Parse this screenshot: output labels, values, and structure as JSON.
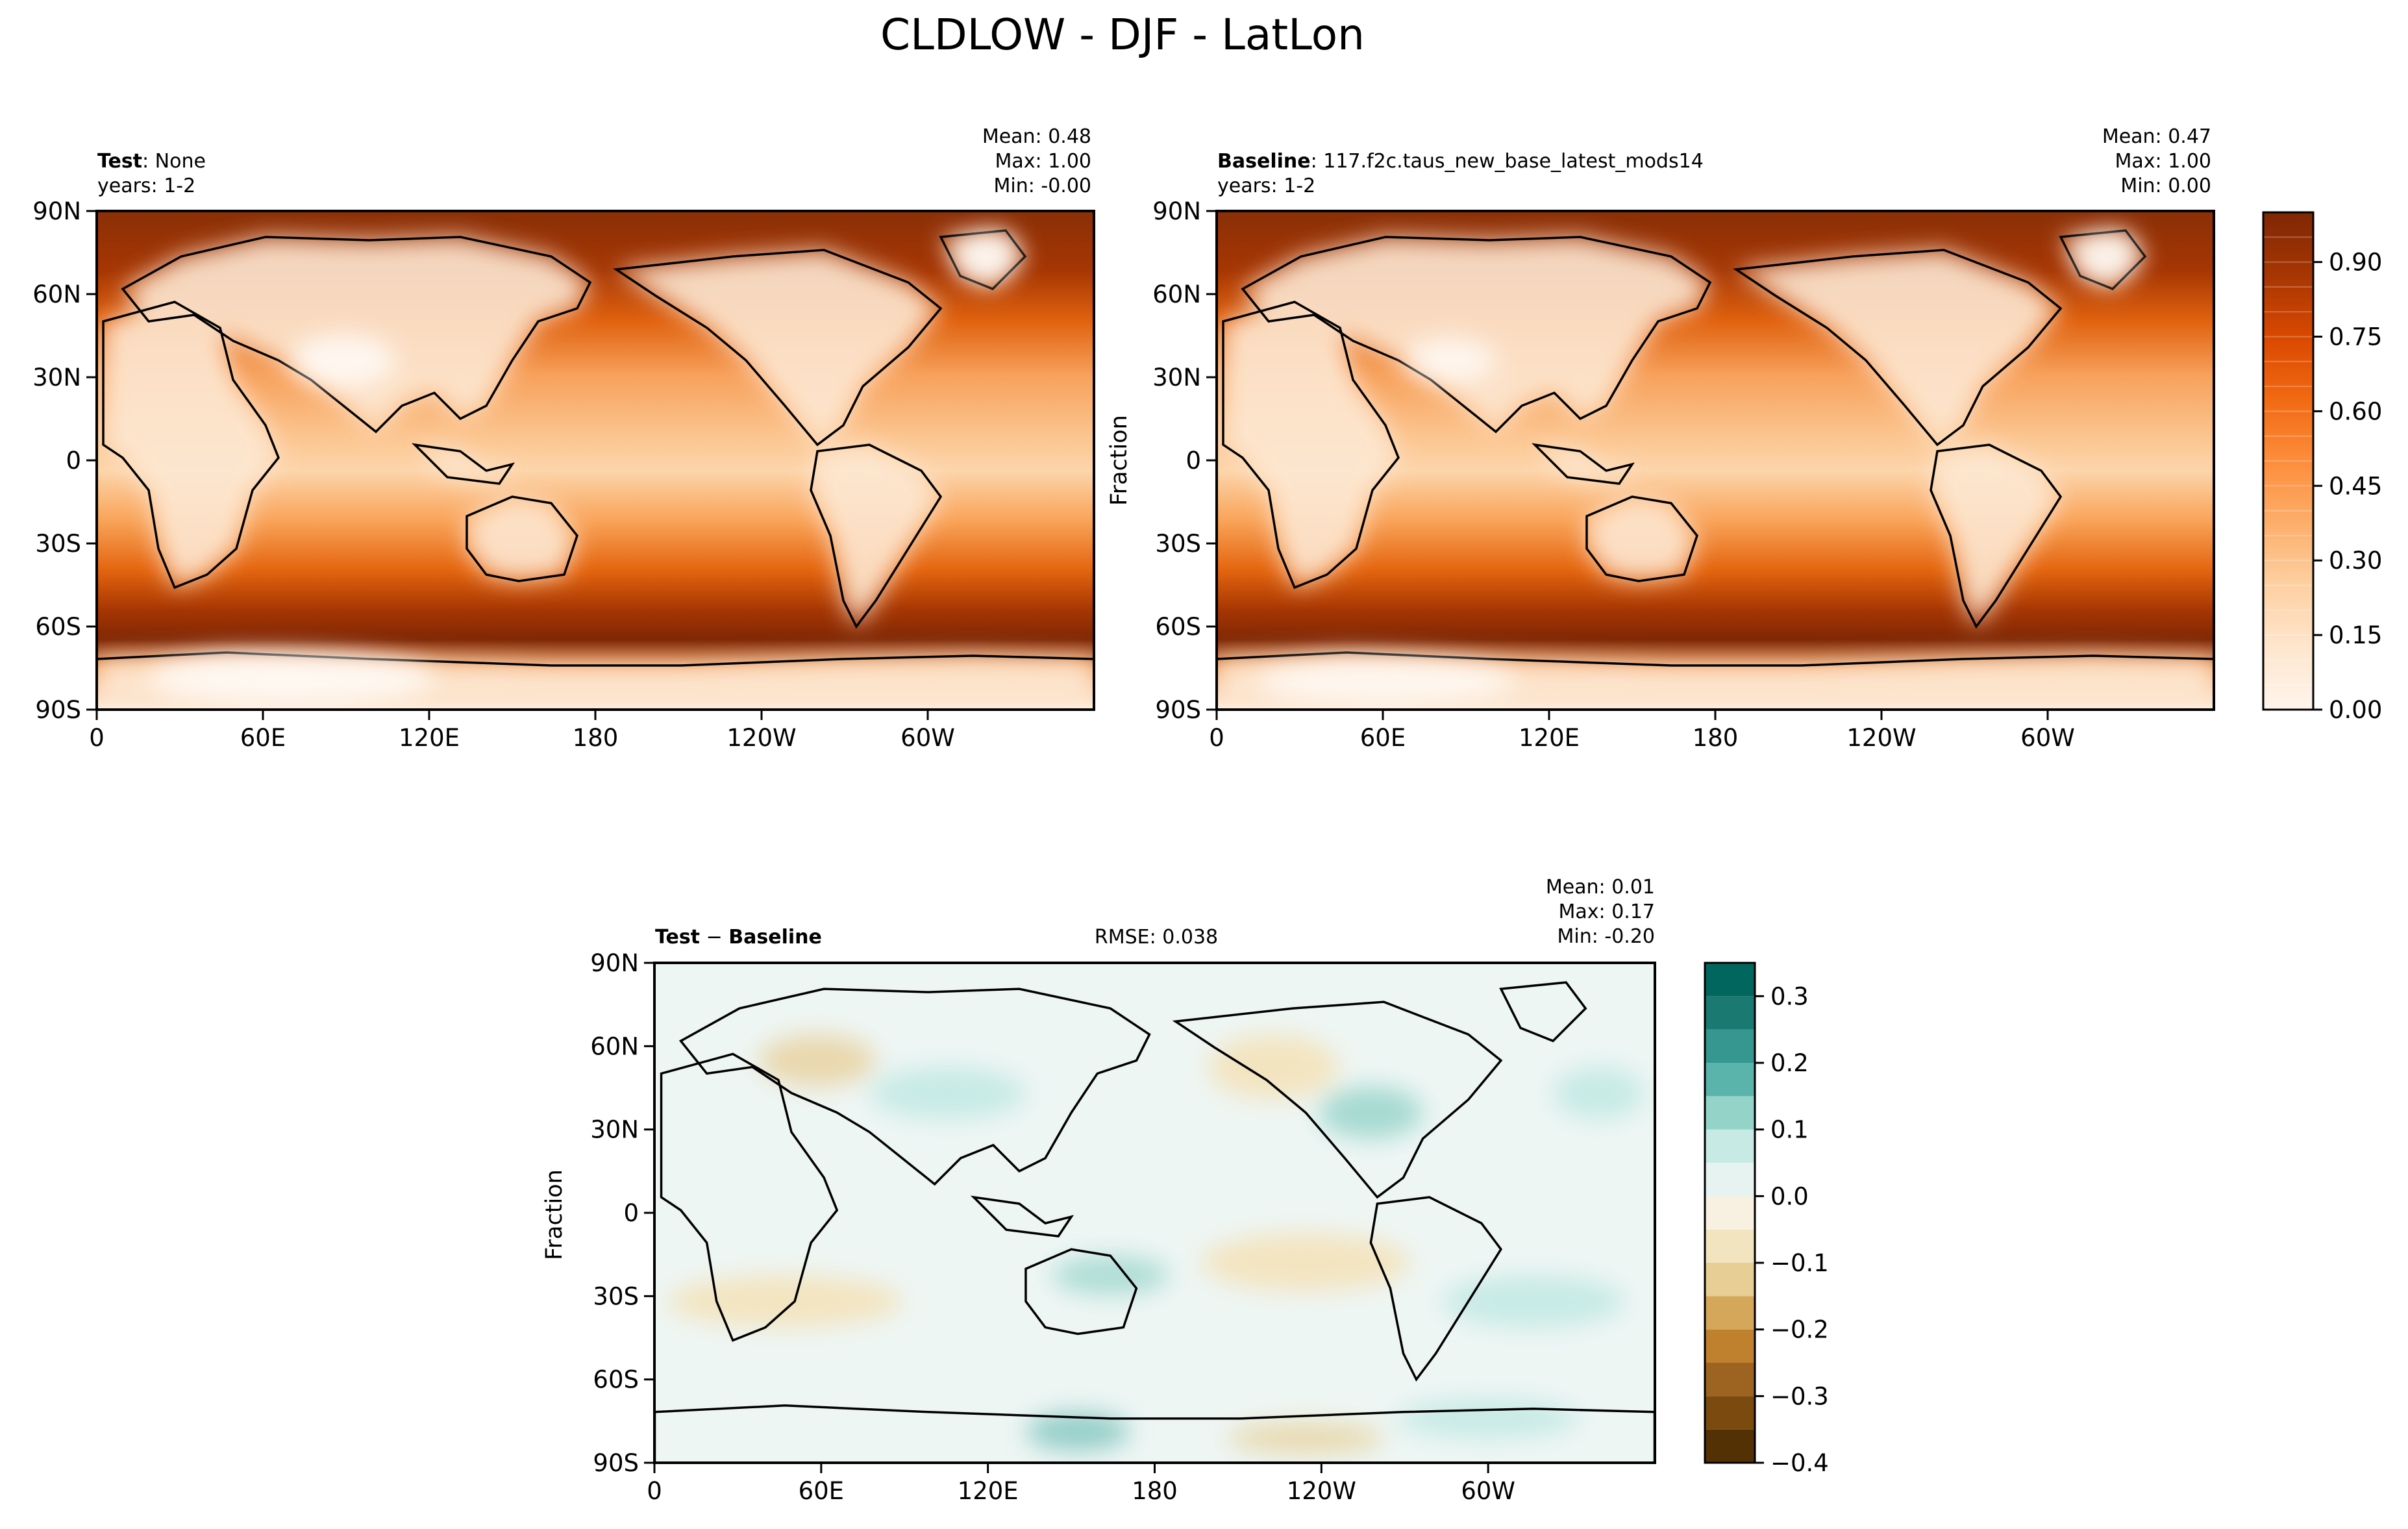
{
  "figure": {
    "title": "CLDLOW - DJF - LatLon"
  },
  "chart_data": [
    {
      "type": "heatmap",
      "panel": "test",
      "label_bold": "Test",
      "label_rest": ": None",
      "subtitle": "years: 1-2",
      "stats": [
        "Mean:  0.48",
        "Max:  1.00",
        "Min: -0.00"
      ],
      "projection": "PlateCarree, central longitude 180",
      "xticks": [
        "0",
        "60E",
        "120E",
        "180",
        "120W",
        "60W"
      ],
      "yticks": [
        "90N",
        "60N",
        "30N",
        "0",
        "30S",
        "60S",
        "90S"
      ],
      "xlim": [
        0,
        360
      ],
      "ylim": [
        -90,
        90
      ],
      "ylabel": "",
      "colormap": "Oranges",
      "colors": [
        "#fff5eb",
        "#fee6ce",
        "#fdd0a2",
        "#fdae6b",
        "#fd8d3c",
        "#f16913",
        "#d94801",
        "#a63603",
        "#7f2704"
      ]
    },
    {
      "type": "heatmap",
      "panel": "baseline",
      "label_bold": "Baseline",
      "label_rest": ": 117.f2c.taus_new_base_latest_mods14",
      "subtitle": "years: 1-2",
      "stats": [
        "Mean:  0.47",
        "Max:  1.00",
        "Min:  0.00"
      ],
      "projection": "PlateCarree, central longitude 180",
      "xticks": [
        "0",
        "60E",
        "120E",
        "180",
        "120W",
        "60W"
      ],
      "yticks": [
        "90N",
        "60N",
        "30N",
        "0",
        "30S",
        "60S",
        "90S"
      ],
      "xlim": [
        0,
        360
      ],
      "ylim": [
        -90,
        90
      ],
      "ylabel": "Fraction",
      "colorbar": {
        "ticks": [
          "0.00",
          "0.15",
          "0.30",
          "0.45",
          "0.60",
          "0.75",
          "0.90"
        ],
        "tick_values": [
          0,
          0.15,
          0.3,
          0.45,
          0.6,
          0.75,
          0.9
        ],
        "range": [
          0,
          1
        ],
        "levels": 20
      },
      "colors": [
        "#fff5eb",
        "#fee6ce",
        "#fdd0a2",
        "#fdae6b",
        "#fd8d3c",
        "#f16913",
        "#d94801",
        "#a63603",
        "#7f2704"
      ]
    },
    {
      "type": "heatmap",
      "panel": "difference",
      "label_bold": "Test",
      "label_mid": " − ",
      "label_bold2": "Baseline",
      "rmse": "RMSE: 0.038",
      "stats": [
        "Mean:  0.01",
        "Max:  0.17",
        "Min: -0.20"
      ],
      "projection": "PlateCarree, central longitude 180",
      "xticks": [
        "0",
        "60E",
        "120E",
        "180",
        "120W",
        "60W"
      ],
      "yticks": [
        "90N",
        "60N",
        "30N",
        "0",
        "30S",
        "60S",
        "90S"
      ],
      "xlim": [
        0,
        360
      ],
      "ylim": [
        -90,
        90
      ],
      "ylabel": "Fraction",
      "colorbar": {
        "ticks": [
          "0.3",
          "0.2",
          "0.1",
          "0.0",
          "−0.1",
          "−0.2",
          "−0.3",
          "−0.4"
        ],
        "tick_values": [
          0.3,
          0.2,
          0.1,
          0.0,
          -0.1,
          -0.2,
          -0.3,
          -0.4
        ],
        "range": [
          -0.4,
          0.35
        ],
        "levels": [
          -0.4,
          -0.35,
          -0.3,
          -0.25,
          -0.2,
          -0.15,
          -0.1,
          -0.05,
          0,
          0.05,
          0.1,
          0.15,
          0.2,
          0.25,
          0.3,
          0.35
        ],
        "level_colors": [
          "#543005",
          "#7a4a0f",
          "#9c6420",
          "#bf812d",
          "#d4a75a",
          "#e6ce94",
          "#f3e4c0",
          "#f8f1e2",
          "#e6f3f1",
          "#c7eae5",
          "#93d3c8",
          "#5ab4ac",
          "#35978f",
          "#1a7a72",
          "#01665e",
          "#003c30"
        ]
      }
    }
  ]
}
